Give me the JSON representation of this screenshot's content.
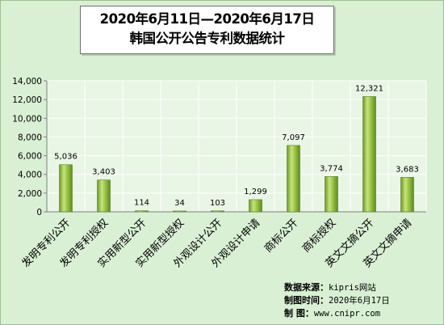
{
  "colors": {
    "background": "#d9f0d4",
    "bar_light": "#c4e07a",
    "bar_mid": "#8db83a",
    "bar_dark": "#5d8a1f",
    "grid_panel": "#e9f5e5",
    "grid_line": "#ffffff"
  },
  "chart_data": {
    "type": "bar",
    "title": "2020年6月11日—2020年6月17日 韩国公开公告专利数据统计",
    "title_lines": [
      "2020年6月11日—2020年6月17日",
      "韩国公开公告专利数据统计"
    ],
    "categories": [
      "发明专利公开",
      "发明专利授权",
      "实用新型公开",
      "实用新型授权",
      "外观设计公开",
      "外观设计申请",
      "商标公开",
      "商标授权",
      "英文文摘公开",
      "英文文摘申请"
    ],
    "values": [
      5036,
      3403,
      114,
      34,
      103,
      1299,
      7097,
      3774,
      12321,
      3683
    ],
    "value_labels": [
      "5,036",
      "3,403",
      "114",
      "34",
      "103",
      "1,299",
      "7,097",
      "3,774",
      "12,321",
      "3,683"
    ],
    "ylim": [
      0,
      14000
    ],
    "yticks": [
      0,
      2000,
      4000,
      6000,
      8000,
      10000,
      12000,
      14000
    ],
    "ytick_labels": [
      "0",
      "2,000",
      "4,000",
      "6,000",
      "8,000",
      "10,000",
      "12,000",
      "14,000"
    ],
    "xlabel": "",
    "ylabel": "",
    "grid": true,
    "legend": "none"
  },
  "source": {
    "row1_label": "数据来源：",
    "row1_value": "kipris网站",
    "row2_label": "制图时间：",
    "row2_value": "2020年6月17日",
    "row3_label": "制    图：",
    "row3_value": "www.cnipr.com"
  }
}
